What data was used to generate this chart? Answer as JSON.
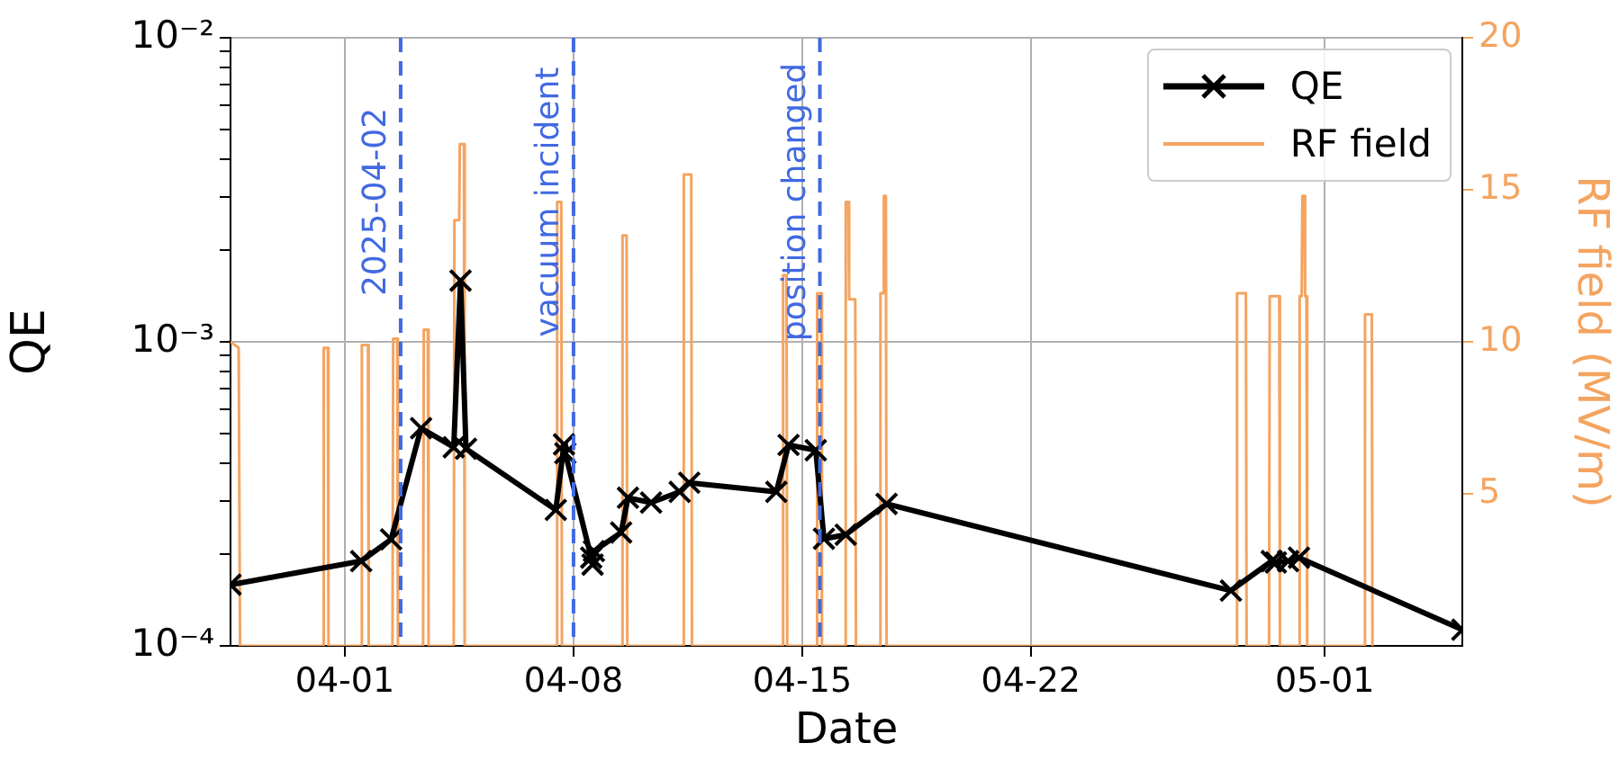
{
  "chart_data": {
    "type": "line",
    "xlabel": "Date",
    "ylabel": "QE",
    "y2label": "RF field (MV/m)",
    "log": "y",
    "grid": true,
    "legend": "top right",
    "xlim": [
      "2025-03-28T12:00",
      "2025-05-05T05:00"
    ],
    "xticks": [
      {
        "value": "2025-04-01",
        "label": "04-01"
      },
      {
        "value": "2025-04-08",
        "label": "04-08"
      },
      {
        "value": "2025-04-15",
        "label": "04-15"
      },
      {
        "value": "2025-04-22",
        "label": "04-22"
      },
      {
        "value": "2025-05-01",
        "label": "05-01"
      }
    ],
    "ylim": [
      0.0001,
      0.01
    ],
    "yticks": [
      {
        "value": 0.0001,
        "label": "10⁻⁴"
      },
      {
        "value": 0.0002,
        "label": null
      },
      {
        "value": 0.0003,
        "label": null
      },
      {
        "value": 0.0004,
        "label": null
      },
      {
        "value": 0.0005,
        "label": null
      },
      {
        "value": 0.0006,
        "label": null
      },
      {
        "value": 0.0007,
        "label": null
      },
      {
        "value": 0.0008,
        "label": null
      },
      {
        "value": 0.0009,
        "label": null
      },
      {
        "value": 0.001,
        "label": "10⁻³"
      },
      {
        "value": 0.002,
        "label": null
      },
      {
        "value": 0.003,
        "label": null
      },
      {
        "value": 0.004,
        "label": null
      },
      {
        "value": 0.005,
        "label": null
      },
      {
        "value": 0.006,
        "label": null
      },
      {
        "value": 0.007,
        "label": null
      },
      {
        "value": 0.008,
        "label": null
      },
      {
        "value": 0.009,
        "label": null
      },
      {
        "value": 0.01,
        "label": "10⁻²"
      }
    ],
    "y2lim": [
      0,
      20
    ],
    "y2ticks": [
      5,
      10,
      15,
      20
    ],
    "ref_lines": [
      {
        "axis": "x",
        "value": "2025-04-02T17:00",
        "label": "2025-04-02",
        "color": "#4169e1",
        "line_style": "dashed"
      },
      {
        "axis": "x",
        "value": "2025-04-08T00:00",
        "label": "vacuum incident",
        "color": "#4169e1",
        "line_style": "dashed"
      },
      {
        "axis": "x",
        "value": "2025-04-15T13:00",
        "label": "position changed",
        "color": "#4169e1",
        "line_style": "dashed"
      }
    ],
    "series": [
      {
        "name": "QE",
        "color": "#000000",
        "marker": "cross",
        "x": [
          "2025-03-28T12:00",
          "2025-04-01T12:00",
          "2025-04-02T10:00",
          "2025-04-03T08:00",
          "2025-04-04T08:00",
          "2025-04-04T13:00",
          "2025-04-04T17:00",
          "2025-04-07T11:00",
          "2025-04-07T17:00",
          "2025-04-07T18:00",
          "2025-04-08T13:00",
          "2025-04-08T14:00",
          "2025-04-08T15:00",
          "2025-04-09T11:00",
          "2025-04-09T16:00",
          "2025-04-10T09:00",
          "2025-04-11T06:00",
          "2025-04-11T13:00",
          "2025-04-14T05:00",
          "2025-04-14T14:00",
          "2025-04-15T10:00",
          "2025-04-15T16:00",
          "2025-04-16T08:00",
          "2025-04-17T14:00",
          "2025-04-28T03:00",
          "2025-04-29T09:00",
          "2025-04-29T12:00",
          "2025-04-29T21:00",
          "2025-04-30T05:00",
          "2025-05-05T05:00"
        ],
        "values": [
          0.000159,
          0.00019,
          0.000224,
          0.00052,
          0.00045,
          0.00159,
          0.000445,
          0.00028,
          0.00046,
          0.00043,
          0.000195,
          0.000185,
          0.000205,
          0.000236,
          0.000307,
          0.000296,
          0.000321,
          0.000344,
          0.000321,
          0.000458,
          0.00044,
          0.000225,
          0.000232,
          0.000293,
          0.000152,
          0.00019,
          0.000188,
          0.00019,
          0.000195,
          0.000113
        ]
      },
      {
        "name": "RF field",
        "color": "#f4a460",
        "axis": "y2",
        "x": [
          "2025-03-28T12:00",
          "2025-03-28T18:00",
          "2025-03-28T19:00",
          "2025-03-31T08:00",
          "2025-03-31T08:30",
          "2025-03-31T11:30",
          "2025-03-31T12:00",
          "2025-04-01T12:00",
          "2025-04-01T12:30",
          "2025-04-01T17:00",
          "2025-04-01T17:30",
          "2025-04-02T11:00",
          "2025-04-02T11:30",
          "2025-04-02T14:30",
          "2025-04-02T15:00",
          "2025-04-03T09:30",
          "2025-04-03T10:00",
          "2025-04-03T13:00",
          "2025-04-03T13:30",
          "2025-04-04T08:00",
          "2025-04-04T08:30",
          "2025-04-04T12:00",
          "2025-04-04T12:30",
          "2025-04-04T15:30",
          "2025-04-04T16:00",
          "2025-04-07T11:30",
          "2025-04-07T12:00",
          "2025-04-07T15:00",
          "2025-04-07T15:30",
          "2025-04-09T11:30",
          "2025-04-09T12:00",
          "2025-04-09T15:00",
          "2025-04-09T15:30",
          "2025-04-11T08:30",
          "2025-04-11T09:00",
          "2025-04-11T14:30",
          "2025-04-11T15:00",
          "2025-04-14T09:30",
          "2025-04-14T10:00",
          "2025-04-14T12:30",
          "2025-04-14T13:00",
          "2025-04-15T10:30",
          "2025-04-15T11:00",
          "2025-04-15T14:00",
          "2025-04-15T14:30",
          "2025-04-16T07:30",
          "2025-04-16T08:00",
          "2025-04-16T10:00",
          "2025-04-16T10:30",
          "2025-04-16T15:00",
          "2025-04-16T15:30",
          "2025-04-17T09:00",
          "2025-04-17T09:30",
          "2025-04-17T11:30",
          "2025-04-17T12:00",
          "2025-04-17T13:30",
          "2025-04-17T14:00",
          "2025-04-28T07:00",
          "2025-04-28T07:30",
          "2025-04-28T14:00",
          "2025-04-28T14:30",
          "2025-04-29T07:00",
          "2025-04-29T07:30",
          "2025-04-29T14:30",
          "2025-04-29T15:00",
          "2025-04-30T05:00",
          "2025-04-30T05:30",
          "2025-04-30T07:00",
          "2025-04-30T07:30",
          "2025-04-30T09:00",
          "2025-04-30T09:30",
          "2025-04-30T10:30",
          "2025-04-30T11:00",
          "2025-05-02T05:00",
          "2025-05-02T05:30",
          "2025-05-02T10:30",
          "2025-05-02T11:00"
        ],
        "values": [
          10.0,
          9.8,
          0,
          0,
          9.8,
          9.8,
          0,
          0,
          9.9,
          9.9,
          0,
          0,
          10.1,
          10.1,
          0,
          0,
          10.4,
          10.4,
          0,
          0,
          14.0,
          14.0,
          16.5,
          16.5,
          0,
          0,
          14.6,
          14.6,
          0,
          0,
          13.5,
          13.5,
          0,
          0,
          15.5,
          15.5,
          0,
          0,
          12.2,
          12.2,
          0,
          0,
          11.6,
          11.6,
          0,
          0,
          14.6,
          14.6,
          11.4,
          11.4,
          0,
          0,
          11.6,
          11.6,
          14.8,
          14.8,
          0,
          0,
          11.6,
          11.6,
          0,
          0,
          11.5,
          11.5,
          0,
          0,
          11.5,
          11.5,
          14.8,
          14.8,
          11.5,
          11.5,
          0,
          0,
          10.9,
          10.9,
          0
        ]
      }
    ]
  }
}
